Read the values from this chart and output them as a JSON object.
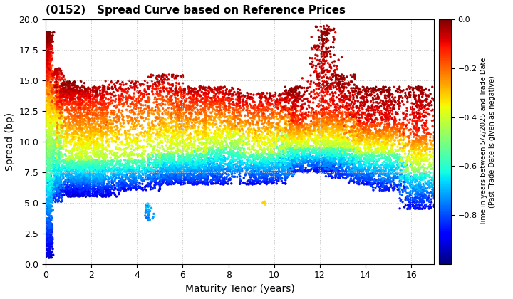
{
  "title": "(0152)   Spread Curve based on Reference Prices",
  "xlabel": "Maturity Tenor (years)",
  "ylabel": "Spread (bp)",
  "colorbar_label": "Time in years between 5/2/2025 and Trade Date\n(Past Trade Date is given as negative)",
  "xlim": [
    0,
    17
  ],
  "ylim": [
    0,
    20
  ],
  "xticks": [
    0,
    2,
    4,
    6,
    8,
    10,
    12,
    14,
    16
  ],
  "yticks": [
    0.0,
    2.5,
    5.0,
    7.5,
    10.0,
    12.5,
    15.0,
    17.5,
    20.0
  ],
  "cmap": "jet",
  "vmin": -1.0,
  "vmax": 0.0,
  "colorbar_ticks": [
    0.0,
    -0.2,
    -0.4,
    -0.6,
    -0.8
  ],
  "background_color": "#ffffff",
  "grid_color": "#c8c8c8",
  "point_size": 6,
  "seed": 42
}
